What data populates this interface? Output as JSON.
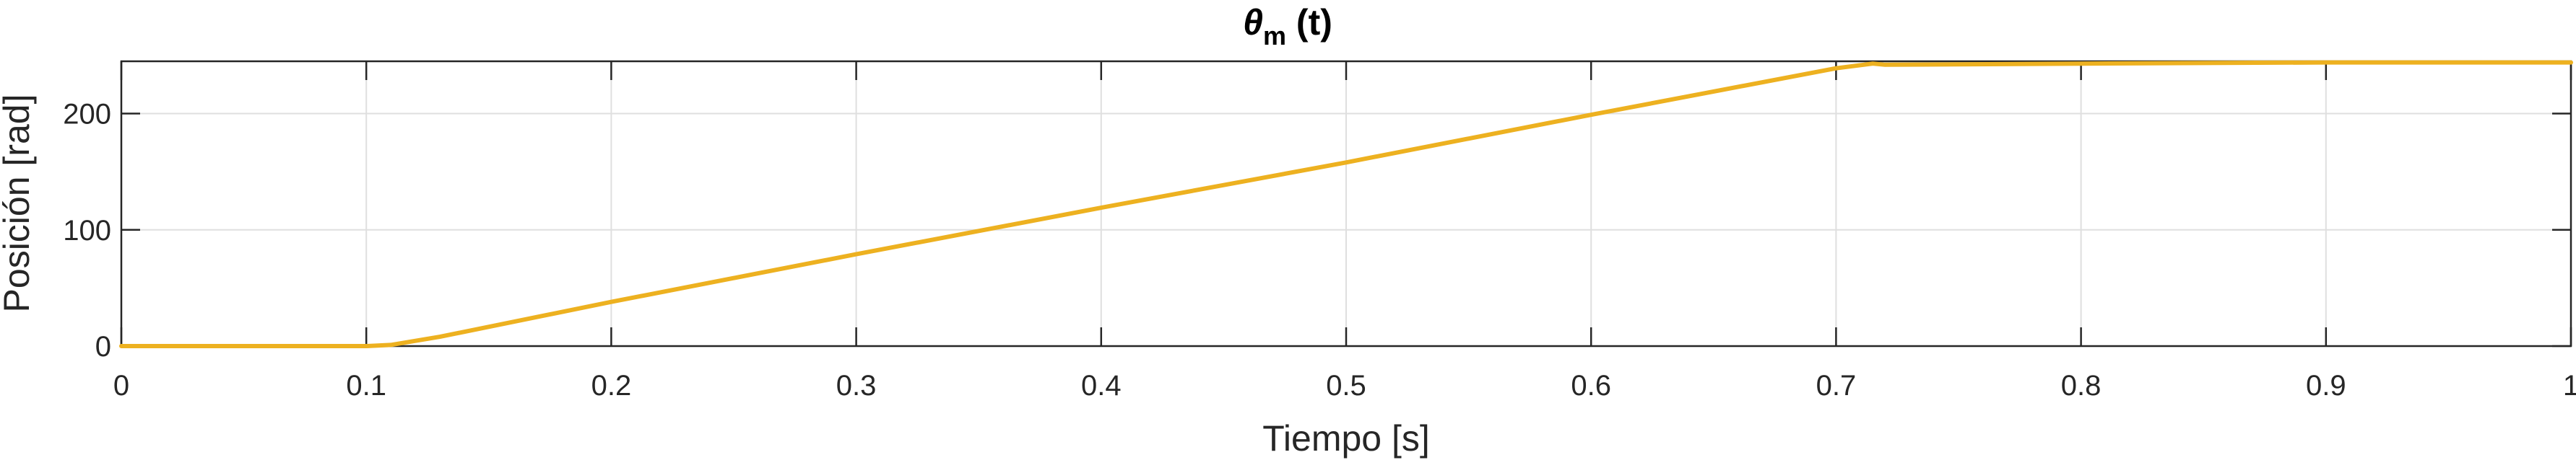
{
  "chart_data": {
    "type": "line",
    "title_symbol": "θ",
    "title_subscript": "m",
    "title_suffix": " (t)",
    "xlabel": "Tiempo [s]",
    "ylabel": "Posición [rad]",
    "xlim": [
      0,
      1
    ],
    "ylim": [
      0,
      245
    ],
    "xticks": [
      0,
      0.1,
      0.2,
      0.3,
      0.4,
      0.5,
      0.6,
      0.7,
      0.8,
      0.9,
      1
    ],
    "xtick_labels": [
      "0",
      "0.1",
      "0.2",
      "0.3",
      "0.4",
      "0.5",
      "0.6",
      "0.7",
      "0.8",
      "0.9",
      "1"
    ],
    "yticks": [
      0,
      100,
      200
    ],
    "ytick_labels": [
      "0",
      "100",
      "200"
    ],
    "grid": true,
    "series": [
      {
        "color": "#EDB120",
        "x": [
          0,
          0.1,
          0.11,
          0.13,
          0.2,
          0.3,
          0.4,
          0.5,
          0.6,
          0.7,
          0.715,
          0.72,
          0.8,
          0.9,
          1
        ],
        "y": [
          0,
          0,
          1,
          8,
          38,
          79,
          119,
          158,
          199,
          239,
          243,
          242,
          243,
          244,
          244
        ]
      }
    ]
  }
}
